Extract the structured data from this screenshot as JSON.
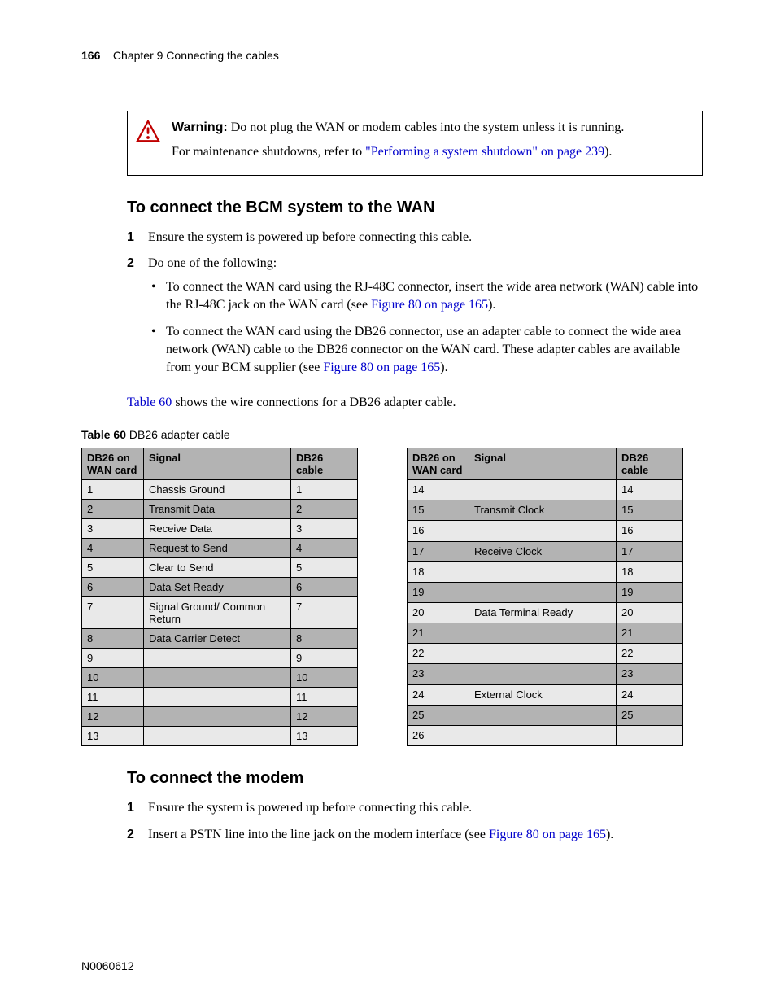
{
  "header": {
    "page_number": "166",
    "chapter_text": "Chapter 9  Connecting the cables"
  },
  "warning": {
    "label": "Warning:",
    "line1_rest": " Do not plug the WAN or modem cables into the system unless it is running.",
    "line2_pre": "For maintenance shutdowns, refer to ",
    "link_text": "\"Performing a system shutdown\" on page 239",
    "line2_post": ")."
  },
  "section1": {
    "title": "To connect the BCM system to the WAN",
    "step1": "Ensure the system is powered up before connecting this cable.",
    "step2_intro": "Do one of the following:",
    "bullet1_pre": "To connect the WAN card using the RJ-48C connector, insert the wide area network (WAN) cable into the RJ-48C jack on the WAN card (see ",
    "bullet1_link": "Figure 80 on page 165",
    "bullet1_post": ").",
    "bullet2_pre": "To connect the WAN card using the DB26 connector, use an adapter cable to connect the wide area network (WAN) cable to the DB26 connector on the WAN card. These adapter cables are available from your BCM supplier (see ",
    "bullet2_link": "Figure 80 on page 165",
    "bullet2_post": ")."
  },
  "table_ref": {
    "link": "Table 60",
    "rest": " shows the wire connections for a DB26 adapter cable."
  },
  "table_caption": {
    "label": "Table 60",
    "desc": "   DB26 adapter cable"
  },
  "table_headers": {
    "col1": "DB26 on WAN card",
    "col2": "Signal",
    "col3": "DB26 cable"
  },
  "table_left": [
    {
      "a": "1",
      "b": "Chassis Ground",
      "c": "1"
    },
    {
      "a": "2",
      "b": "Transmit Data",
      "c": "2"
    },
    {
      "a": "3",
      "b": "Receive Data",
      "c": "3"
    },
    {
      "a": "4",
      "b": "Request to Send",
      "c": "4"
    },
    {
      "a": "5",
      "b": "Clear to Send",
      "c": "5"
    },
    {
      "a": "6",
      "b": "Data Set Ready",
      "c": "6"
    },
    {
      "a": "7",
      "b": "Signal Ground/ Common Return",
      "c": "7"
    },
    {
      "a": "8",
      "b": "Data Carrier Detect",
      "c": "8"
    },
    {
      "a": "9",
      "b": "",
      "c": "9"
    },
    {
      "a": "10",
      "b": "",
      "c": "10"
    },
    {
      "a": "11",
      "b": "",
      "c": "11"
    },
    {
      "a": "12",
      "b": "",
      "c": "12"
    },
    {
      "a": "13",
      "b": "",
      "c": "13"
    }
  ],
  "table_right": [
    {
      "a": "14",
      "b": "",
      "c": "14"
    },
    {
      "a": "15",
      "b": "Transmit Clock",
      "c": "15"
    },
    {
      "a": "16",
      "b": "",
      "c": "16"
    },
    {
      "a": "17",
      "b": "Receive Clock",
      "c": "17"
    },
    {
      "a": "18",
      "b": "",
      "c": "18"
    },
    {
      "a": "19",
      "b": "",
      "c": "19"
    },
    {
      "a": "20",
      "b": "Data Terminal Ready",
      "c": "20"
    },
    {
      "a": "21",
      "b": "",
      "c": "21"
    },
    {
      "a": "22",
      "b": "",
      "c": "22"
    },
    {
      "a": "23",
      "b": "",
      "c": "23"
    },
    {
      "a": "24",
      "b": "External Clock",
      "c": "24"
    },
    {
      "a": "25",
      "b": "",
      "c": "25"
    },
    {
      "a": "26",
      "b": "",
      "c": ""
    }
  ],
  "section2": {
    "title": "To connect the modem",
    "step1": "Ensure the system is powered up before connecting this cable.",
    "step2_pre": "Insert a PSTN line into the line jack on the modem interface (see ",
    "step2_link": "Figure 80 on page 165",
    "step2_post": ")."
  },
  "footer": {
    "doc_id": "N0060612"
  },
  "style": {
    "link_color": "#0000cc",
    "header_bg": "#b3b3b3",
    "row_light": "#e9e9e9",
    "warning_icon_color": "#c00000"
  }
}
